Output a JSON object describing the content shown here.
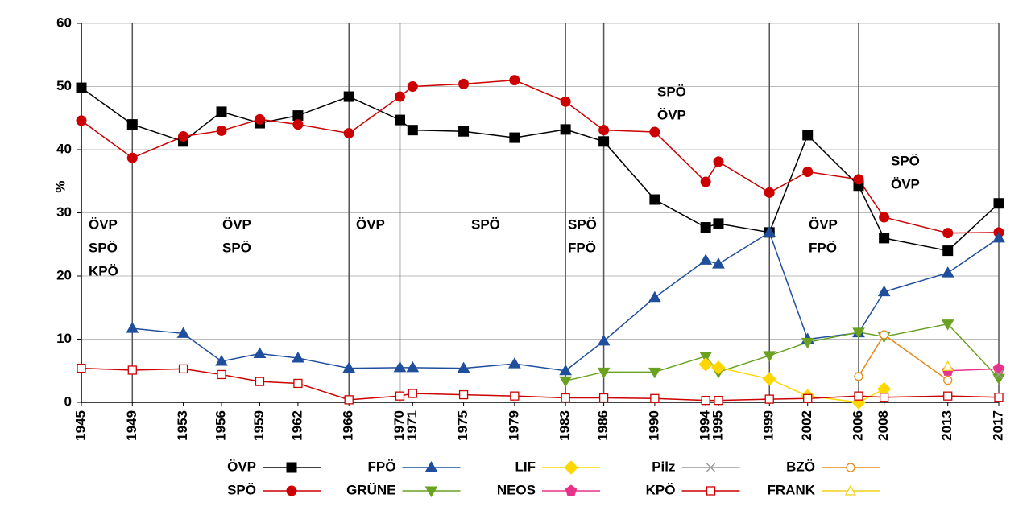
{
  "chart_data": {
    "type": "line",
    "y_label": "%",
    "x": [
      1945,
      1949,
      1953,
      1956,
      1959,
      1962,
      1966,
      1970,
      1971,
      1975,
      1979,
      1983,
      1986,
      1990,
      1994,
      1995,
      1999,
      2002,
      2006,
      2008,
      2013,
      2017
    ],
    "xlim": [
      1945,
      2017
    ],
    "xticks": [
      1945,
      1949,
      1953,
      1956,
      1959,
      1962,
      1966,
      1970,
      1971,
      1975,
      1979,
      1983,
      1986,
      1990,
      1994,
      1995,
      1999,
      2002,
      2006,
      2008,
      2013,
      2017
    ],
    "ylim": [
      0,
      60
    ],
    "yticks": [
      0,
      10,
      20,
      30,
      40,
      50,
      60
    ],
    "grid": true,
    "vlines": [
      1949,
      1966,
      1970,
      1983,
      1986,
      1999,
      2006,
      2017
    ],
    "annotations": [
      [
        "ÖVP",
        "SPÖ",
        "KPÖ"
      ],
      [
        "ÖVP",
        "SPÖ"
      ],
      [
        "ÖVP"
      ],
      [
        "SPÖ"
      ],
      [
        "SPÖ",
        "FPÖ"
      ],
      [
        "SPÖ",
        "ÖVP"
      ],
      [
        "ÖVP",
        "FPÖ"
      ],
      [
        "SPÖ",
        "ÖVP"
      ]
    ],
    "series": [
      {
        "name": "ÖVP",
        "color": "#000000",
        "marker": "square",
        "values": [
          49.8,
          44.0,
          41.3,
          46.0,
          44.2,
          45.4,
          48.4,
          44.7,
          43.1,
          42.9,
          41.9,
          43.2,
          41.3,
          32.1,
          27.7,
          28.3,
          26.9,
          42.3,
          34.3,
          26.0,
          24.0,
          31.5
        ]
      },
      {
        "name": "SPÖ",
        "color": "#cc0000",
        "marker": "circle",
        "values": [
          44.6,
          38.7,
          42.1,
          43.0,
          44.8,
          44.0,
          42.6,
          48.4,
          50.0,
          50.4,
          51.0,
          47.6,
          43.1,
          42.8,
          34.9,
          38.1,
          33.2,
          36.5,
          35.3,
          29.3,
          26.8,
          26.9
        ]
      },
      {
        "name": "FPÖ",
        "color": "#1f4e9c",
        "marker": "triangle",
        "values": [
          null,
          11.7,
          10.9,
          6.5,
          7.7,
          7.0,
          5.4,
          5.5,
          5.5,
          5.4,
          6.1,
          5.0,
          9.7,
          16.6,
          22.5,
          21.9,
          26.9,
          10.0,
          11.0,
          17.5,
          20.5,
          26.0
        ]
      },
      {
        "name": "GRÜNE",
        "color": "#6aa121",
        "marker": "triangle-down",
        "values": [
          null,
          null,
          null,
          null,
          null,
          null,
          null,
          null,
          null,
          null,
          null,
          3.4,
          4.8,
          4.8,
          7.3,
          4.8,
          7.4,
          9.5,
          11.1,
          10.4,
          12.4,
          3.8
        ]
      },
      {
        "name": "LIF",
        "color": "#ffd700",
        "marker": "diamond",
        "values": [
          null,
          null,
          null,
          null,
          null,
          null,
          null,
          null,
          null,
          null,
          null,
          null,
          null,
          null,
          6.0,
          5.5,
          3.7,
          1.0,
          0.0,
          2.1,
          null,
          null
        ]
      },
      {
        "name": "NEOS",
        "color": "#e8338a",
        "marker": "pentagon",
        "values": [
          null,
          null,
          null,
          null,
          null,
          null,
          null,
          null,
          null,
          null,
          null,
          null,
          null,
          null,
          null,
          null,
          null,
          null,
          null,
          null,
          5.0,
          5.3
        ]
      },
      {
        "name": "Pilz",
        "color": "#999999",
        "marker": "x",
        "values": [
          null,
          null,
          null,
          null,
          null,
          null,
          null,
          null,
          null,
          null,
          null,
          null,
          null,
          null,
          null,
          null,
          null,
          null,
          null,
          null,
          null,
          4.4
        ]
      },
      {
        "name": "KPÖ",
        "color": "#cc0000",
        "marker": "open-square",
        "values": [
          5.4,
          5.1,
          5.3,
          4.4,
          3.3,
          3.0,
          0.4,
          1.0,
          1.4,
          1.2,
          1.0,
          0.7,
          0.7,
          0.6,
          0.3,
          0.3,
          0.5,
          0.6,
          1.0,
          0.8,
          1.0,
          0.8
        ]
      },
      {
        "name": "BZÖ",
        "color": "#e8891a",
        "marker": "open-circle",
        "values": [
          null,
          null,
          null,
          null,
          null,
          null,
          null,
          null,
          null,
          null,
          null,
          null,
          null,
          null,
          null,
          null,
          null,
          null,
          4.1,
          10.7,
          3.5,
          null
        ]
      },
      {
        "name": "FRANK",
        "color": "#f2d21b",
        "marker": "open-triangle",
        "values": [
          null,
          null,
          null,
          null,
          null,
          null,
          null,
          null,
          null,
          null,
          null,
          null,
          null,
          null,
          null,
          null,
          null,
          null,
          null,
          null,
          5.7,
          null
        ]
      }
    ]
  }
}
